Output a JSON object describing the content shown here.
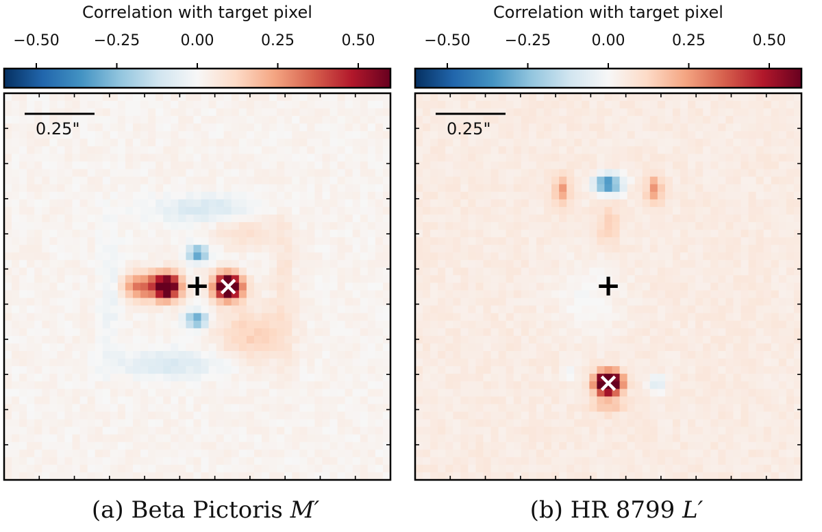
{
  "chart_data": [
    {
      "type": "heatmap",
      "panel_label": "(a)",
      "target": "Beta Pictoris",
      "band": "M′",
      "colorbar": {
        "label": "Correlation with target pixel",
        "range": [
          -0.6,
          0.6
        ],
        "ticks": [
          -0.5,
          -0.25,
          0.0,
          0.25,
          0.5
        ],
        "tick_labels": [
          "−0.50",
          "−0.25",
          "0.00",
          "0.25",
          "0.50"
        ],
        "colormap": [
          "#053061",
          "#2166ac",
          "#4393c3",
          "#92c5de",
          "#d1e5f0",
          "#f7f7f7",
          "#fddbc7",
          "#f4a582",
          "#d6604d",
          "#b2182b",
          "#67001f"
        ]
      },
      "scale_bar": "0.25\"",
      "markers": {
        "center": "+",
        "target": "×"
      },
      "grid_size": 51,
      "blobs": [
        {
          "x": 0.16,
          "y": 0.0,
          "sx": 0.05,
          "sy": 0.045,
          "a": 0.85
        },
        {
          "x": -0.16,
          "y": 0.0,
          "sx": 0.05,
          "sy": 0.045,
          "a": 0.8
        },
        {
          "x": -0.3,
          "y": 0.0,
          "sx": 0.06,
          "sy": 0.05,
          "a": 0.3
        },
        {
          "x": 0.0,
          "y": -0.17,
          "sx": 0.04,
          "sy": 0.03,
          "a": -0.35
        },
        {
          "x": 0.0,
          "y": 0.17,
          "sx": 0.04,
          "sy": 0.03,
          "a": -0.35
        },
        {
          "x": 0.05,
          "y": -0.4,
          "sx": 0.2,
          "sy": 0.05,
          "a": -0.12
        },
        {
          "x": -0.15,
          "y": 0.4,
          "sx": 0.2,
          "sy": 0.05,
          "a": -0.12
        },
        {
          "x": 0.28,
          "y": 0.25,
          "sx": 0.12,
          "sy": 0.1,
          "a": 0.12
        },
        {
          "x": 0.25,
          "y": -0.3,
          "sx": 0.12,
          "sy": 0.06,
          "a": 0.08
        },
        {
          "x": -0.45,
          "y": 0.0,
          "sx": 0.04,
          "sy": 0.25,
          "a": -0.06
        },
        {
          "x": 0.45,
          "y": 0.0,
          "sx": 0.04,
          "sy": 0.25,
          "a": 0.06
        }
      ],
      "noise": 0.04,
      "bias": 0.02,
      "center": [
        0.0,
        0.0
      ],
      "target_position": [
        0.16,
        0.0
      ]
    },
    {
      "type": "heatmap",
      "panel_label": "(b)",
      "target": "HR 8799",
      "band": "L′",
      "colorbar": {
        "label": "Correlation with target pixel",
        "range": [
          -0.6,
          0.6
        ],
        "ticks": [
          -0.5,
          -0.25,
          0.0,
          0.25,
          0.5
        ],
        "tick_labels": [
          "−0.50",
          "−0.25",
          "0.00",
          "0.25",
          "0.50"
        ],
        "colormap": [
          "#053061",
          "#2166ac",
          "#4393c3",
          "#92c5de",
          "#d1e5f0",
          "#f7f7f7",
          "#fddbc7",
          "#f4a582",
          "#d6604d",
          "#b2182b",
          "#67001f"
        ]
      },
      "scale_bar": "0.25\"",
      "markers": {
        "center": "+",
        "target": "×"
      },
      "grid_size": 51,
      "blobs": [
        {
          "x": 0.0,
          "y": 0.5,
          "sx": 0.045,
          "sy": 0.04,
          "a": 0.95
        },
        {
          "x": 0.0,
          "y": -0.53,
          "sx": 0.05,
          "sy": 0.035,
          "a": -0.45
        },
        {
          "x": -0.24,
          "y": -0.5,
          "sx": 0.03,
          "sy": 0.05,
          "a": 0.22
        },
        {
          "x": 0.24,
          "y": -0.5,
          "sx": 0.03,
          "sy": 0.05,
          "a": 0.22
        },
        {
          "x": 0.0,
          "y": -0.32,
          "sx": 0.04,
          "sy": 0.08,
          "a": 0.1
        },
        {
          "x": 0.25,
          "y": 0.5,
          "sx": 0.03,
          "sy": 0.03,
          "a": -0.15
        },
        {
          "x": -0.2,
          "y": 0.45,
          "sx": 0.03,
          "sy": 0.03,
          "a": -0.08
        },
        {
          "x": 0.0,
          "y": 0.62,
          "sx": 0.06,
          "sy": 0.03,
          "a": 0.12
        },
        {
          "x": -0.1,
          "y": 0.05,
          "sx": 0.12,
          "sy": 0.15,
          "a": -0.05
        }
      ],
      "noise": 0.04,
      "bias": 0.05,
      "center": [
        0.0,
        0.0
      ],
      "target_position": [
        0.0,
        0.5
      ]
    }
  ]
}
